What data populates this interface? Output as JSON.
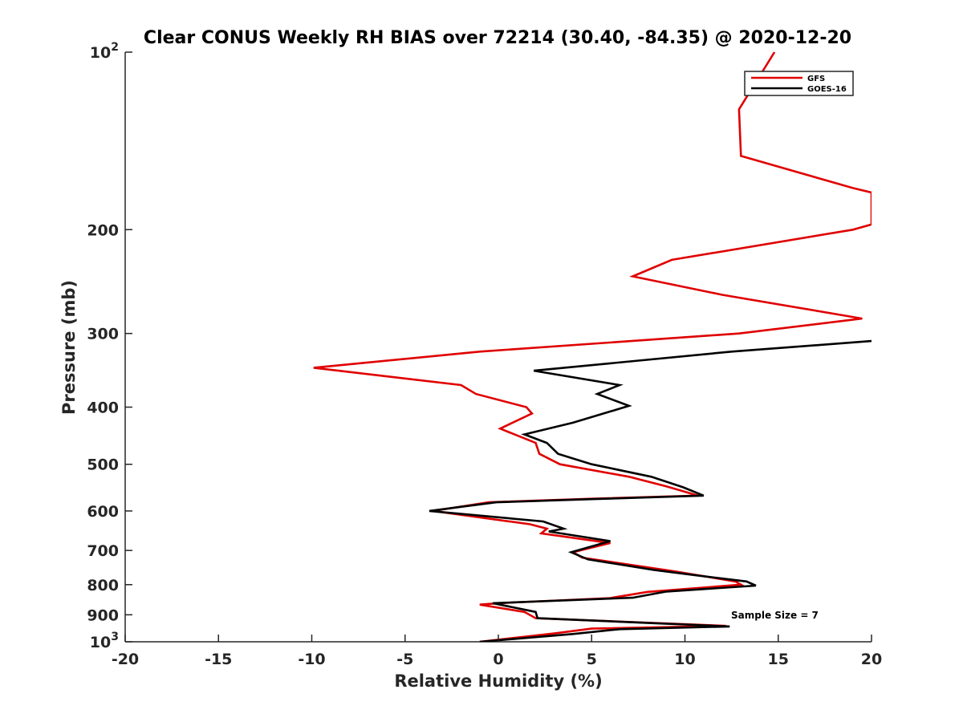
{
  "chart_data": {
    "type": "line",
    "title": "Clear CONUS Weekly RH BIAS over 72214 (30.40, -84.35) @ 2020-12-20",
    "xlabel": "Relative Humidity (%)",
    "ylabel": "Pressure (mb)",
    "xlim": [
      -20,
      20
    ],
    "ylim": [
      100,
      1000
    ],
    "yscale": "log",
    "yreversed": true,
    "grid": false,
    "legend_position": "top-right",
    "x_ticks": [
      -20,
      -15,
      -10,
      -5,
      0,
      5,
      10,
      15,
      20
    ],
    "x_tick_labels": [
      "-20",
      "-15",
      "-10",
      "-5",
      "0",
      "5",
      "10",
      "15",
      "20"
    ],
    "y_ticks": [
      100,
      200,
      300,
      400,
      500,
      600,
      700,
      800,
      900,
      1000
    ],
    "y_tick_labels": [
      {
        "base": "10",
        "exp": "2"
      },
      {
        "base": "200"
      },
      {
        "base": "300"
      },
      {
        "base": "400"
      },
      {
        "base": "500"
      },
      {
        "base": "600"
      },
      {
        "base": "700"
      },
      {
        "base": "800"
      },
      {
        "base": "900"
      },
      {
        "base": "10",
        "exp": "3"
      }
    ],
    "annotation": "Sample Size = 7",
    "series": [
      {
        "name": "GFS",
        "color": "#e00000",
        "points": [
          [
            14.8,
            100
          ],
          [
            12.9,
            125
          ],
          [
            13.0,
            150
          ],
          [
            19.0,
            170
          ],
          [
            20.0,
            173
          ],
          [
            20.0,
            196
          ],
          [
            19.0,
            200
          ],
          [
            9.3,
            225
          ],
          [
            7.2,
            240
          ],
          [
            12.0,
            258
          ],
          [
            19.5,
            283
          ],
          [
            12.9,
            300
          ],
          [
            -1.0,
            322
          ],
          [
            -9.9,
            343
          ],
          [
            -2.0,
            367
          ],
          [
            -1.2,
            380
          ],
          [
            1.5,
            400
          ],
          [
            1.8,
            410
          ],
          [
            0.1,
            435
          ],
          [
            2.0,
            460
          ],
          [
            2.2,
            480
          ],
          [
            3.3,
            500
          ],
          [
            7.0,
            525
          ],
          [
            9.0,
            545
          ],
          [
            10.7,
            565
          ],
          [
            5.0,
            572
          ],
          [
            -0.5,
            580
          ],
          [
            -3.5,
            600
          ],
          [
            1.7,
            632
          ],
          [
            2.6,
            643
          ],
          [
            2.3,
            655
          ],
          [
            6.0,
            680
          ],
          [
            4.0,
            705
          ],
          [
            4.5,
            720
          ],
          [
            9.5,
            760
          ],
          [
            12.7,
            790
          ],
          [
            13.0,
            800
          ],
          [
            8.0,
            823
          ],
          [
            6.0,
            843
          ],
          [
            0.0,
            860
          ],
          [
            -1.0,
            865
          ],
          [
            1.4,
            890
          ],
          [
            2.0,
            912
          ],
          [
            12.2,
            940
          ],
          [
            5.0,
            950
          ],
          [
            3.0,
            968
          ],
          [
            -1.0,
            1000
          ]
        ]
      },
      {
        "name": "GOES-16",
        "color": "#000000",
        "points": [
          [
            20.0,
            309
          ],
          [
            12.5,
            322
          ],
          [
            1.9,
            347
          ],
          [
            6.5,
            367
          ],
          [
            5.3,
            380
          ],
          [
            7.0,
            398
          ],
          [
            4.0,
            425
          ],
          [
            1.4,
            445
          ],
          [
            2.6,
            460
          ],
          [
            3.2,
            480
          ],
          [
            5.0,
            500
          ],
          [
            8.2,
            525
          ],
          [
            9.9,
            547
          ],
          [
            11.0,
            565
          ],
          [
            5.0,
            573
          ],
          [
            -0.1,
            580
          ],
          [
            -3.7,
            600
          ],
          [
            2.4,
            625
          ],
          [
            3.5,
            643
          ],
          [
            2.7,
            650
          ],
          [
            6.0,
            675
          ],
          [
            3.9,
            705
          ],
          [
            4.8,
            725
          ],
          [
            8.3,
            755
          ],
          [
            10.4,
            770
          ],
          [
            13.3,
            790
          ],
          [
            13.8,
            803
          ],
          [
            9.0,
            822
          ],
          [
            7.2,
            842
          ],
          [
            -0.3,
            860
          ],
          [
            2.0,
            890
          ],
          [
            2.1,
            912
          ],
          [
            12.4,
            942
          ],
          [
            6.5,
            952
          ],
          [
            4.0,
            970
          ],
          [
            -1.0,
            1000
          ]
        ]
      }
    ]
  }
}
